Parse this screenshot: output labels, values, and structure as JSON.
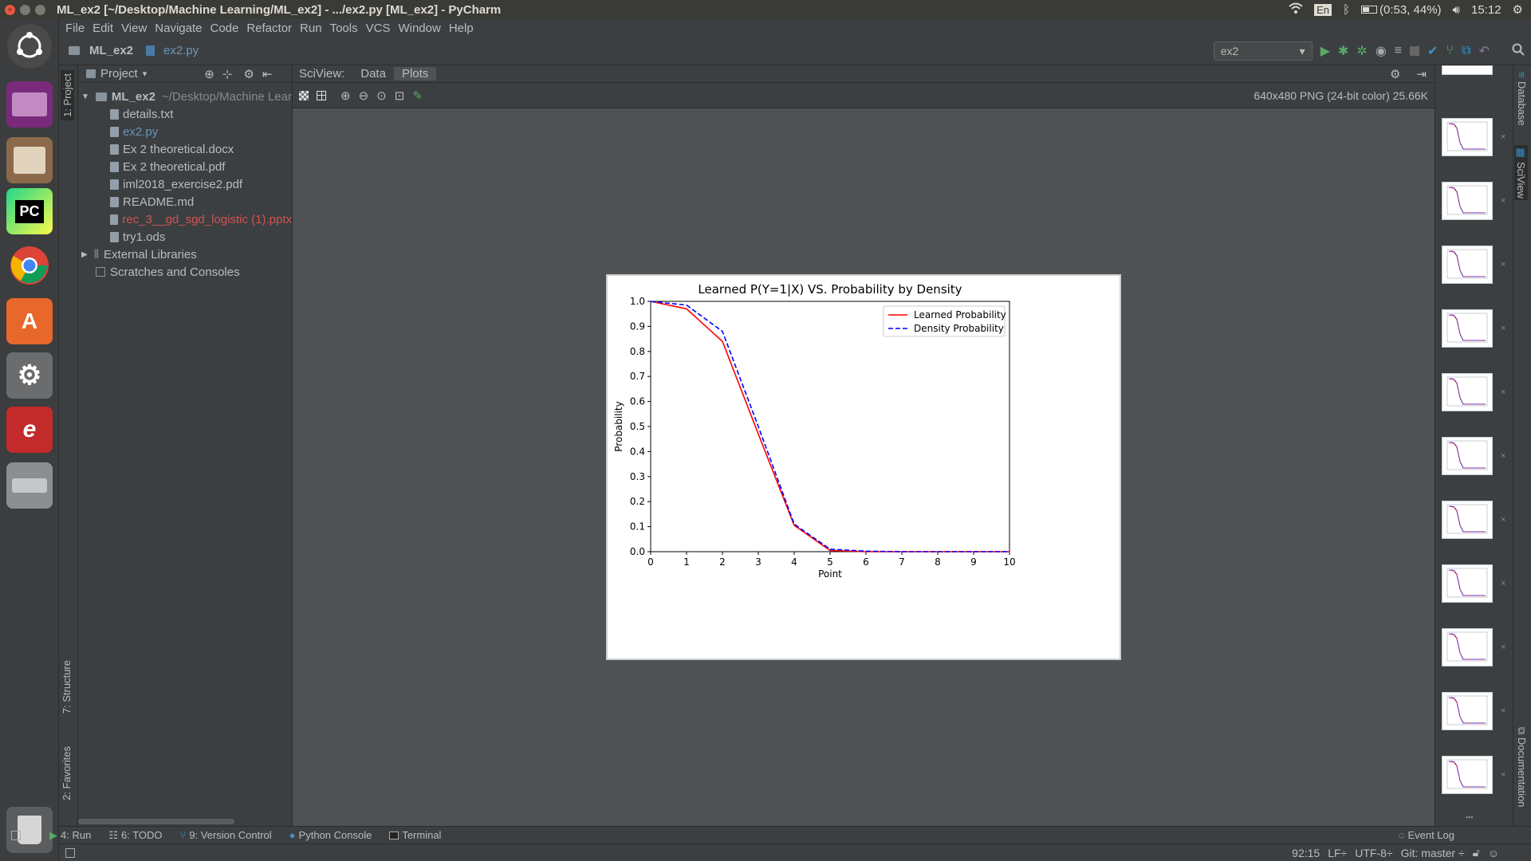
{
  "os": {
    "window_title": "ML_ex2 [~/Desktop/Machine Learning/ML_ex2] - .../ex2.py [ML_ex2] - PyCharm",
    "keyboard": "En",
    "battery": "(0:53, 44%)",
    "clock": "15:12"
  },
  "menu": [
    "File",
    "Edit",
    "View",
    "Navigate",
    "Code",
    "Refactor",
    "Run",
    "Tools",
    "VCS",
    "Window",
    "Help"
  ],
  "nav": {
    "project": "ML_ex2",
    "file": "ex2.py",
    "run_config": "ex2"
  },
  "project_panel": {
    "title": "Project",
    "root": "ML_ex2",
    "root_path": "~/Desktop/Machine Lear",
    "files": [
      {
        "name": "details.txt",
        "color": "#bbbbbb"
      },
      {
        "name": "ex2.py",
        "color": "#6897bb"
      },
      {
        "name": "Ex 2 theoretical.docx",
        "color": "#bbbbbb"
      },
      {
        "name": "Ex 2 theoretical.pdf",
        "color": "#bbbbbb"
      },
      {
        "name": "iml2018_exercise2.pdf",
        "color": "#bbbbbb"
      },
      {
        "name": "README.md",
        "color": "#bbbbbb"
      },
      {
        "name": "rec_3__gd_sgd_logistic (1).pptx",
        "color": "#d25252"
      },
      {
        "name": "try1.ods",
        "color": "#bbbbbb"
      }
    ],
    "external": "External Libraries",
    "scratches": "Scratches and Consoles"
  },
  "left_tabs": {
    "project": "1: Project",
    "structure": "7: Structure",
    "favorites": "2: Favorites"
  },
  "right_tabs": {
    "database": "Database",
    "sciview": "SciView",
    "documentation": "Documentation"
  },
  "sciview": {
    "label": "SciView:",
    "tab_data": "Data",
    "tab_plots": "Plots",
    "image_info": "640x480 PNG (24-bit color) 25.66K"
  },
  "bottom_tools": {
    "run": "4: Run",
    "todo": "6: TODO",
    "vcs": "9: Version Control",
    "console": "Python Console",
    "terminal": "Terminal",
    "event_log": "Event Log"
  },
  "status": {
    "position": "92:15",
    "line_sep": "LF÷",
    "encoding": "UTF-8÷",
    "git": "Git: master ÷"
  },
  "chart_data": {
    "type": "line",
    "title": "Learned P(Y=1|X) VS. Probability by Density",
    "xlabel": "Point",
    "ylabel": "Probability",
    "xlim": [
      0,
      10
    ],
    "ylim": [
      0,
      1
    ],
    "xticks": [
      "0",
      "1",
      "2",
      "3",
      "4",
      "5",
      "6",
      "7",
      "8",
      "9",
      "10"
    ],
    "yticks": [
      "0.0",
      "0.1",
      "0.2",
      "0.3",
      "0.4",
      "0.5",
      "0.6",
      "0.7",
      "0.8",
      "0.9",
      "1.0"
    ],
    "legend_position": "top-right",
    "x": [
      0,
      1,
      2,
      3,
      4,
      5,
      6,
      7,
      8,
      9,
      10
    ],
    "series": [
      {
        "name": "Learned Probability",
        "color": "#ff0000",
        "dash": "solid",
        "values": [
          1.0,
          0.97,
          0.84,
          0.47,
          0.105,
          0.005,
          0.0,
          0.0,
          0.0,
          0.0,
          0.0
        ]
      },
      {
        "name": "Density Probability",
        "color": "#0000ff",
        "dash": "dashed",
        "values": [
          1.0,
          0.985,
          0.88,
          0.5,
          0.11,
          0.01,
          0.002,
          0.0,
          0.0,
          0.0,
          0.0
        ]
      }
    ]
  }
}
